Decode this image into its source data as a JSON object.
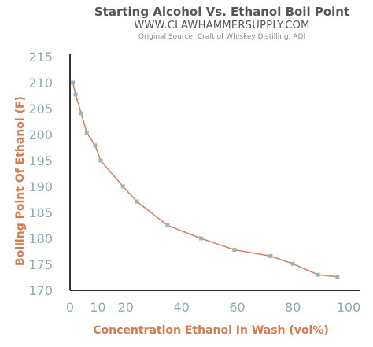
{
  "title": "Starting Alcohol Vs. Ethanol Boil Point",
  "subtitle": "WWW.CLAWHAMMERSUPPLY.COM",
  "source": "Original Source: Craft of Whiskey Distilling, ADI",
  "colors": {
    "line": "#d9836a",
    "marker": "#9eb3b8",
    "ticks": "#8faab3",
    "axis_title": "#d97a4f",
    "axis": "#333333"
  },
  "chart_data": {
    "type": "line",
    "title": "Starting Alcohol Vs. Ethanol Boil Point",
    "xlabel": "Concentration Ethanol In Wash (vol%)",
    "ylabel": "Boiling Point Of Ethanol (F)",
    "xlim": [
      0,
      100
    ],
    "ylim": [
      170,
      215
    ],
    "xticks": [
      0,
      10,
      20,
      40,
      60,
      80,
      100
    ],
    "yticks": [
      170,
      175,
      180,
      185,
      190,
      195,
      200,
      205,
      210,
      215
    ],
    "grid": false,
    "series": [
      {
        "x": [
          1,
          2,
          4,
          6,
          9,
          11,
          19,
          24,
          35,
          47,
          59,
          72,
          80,
          89,
          96
        ],
        "y": [
          210,
          207.7,
          204.1,
          200.4,
          197.9,
          195,
          190,
          187.1,
          182.5,
          180,
          177.8,
          176.6,
          175.1,
          173,
          172.6
        ]
      }
    ]
  }
}
